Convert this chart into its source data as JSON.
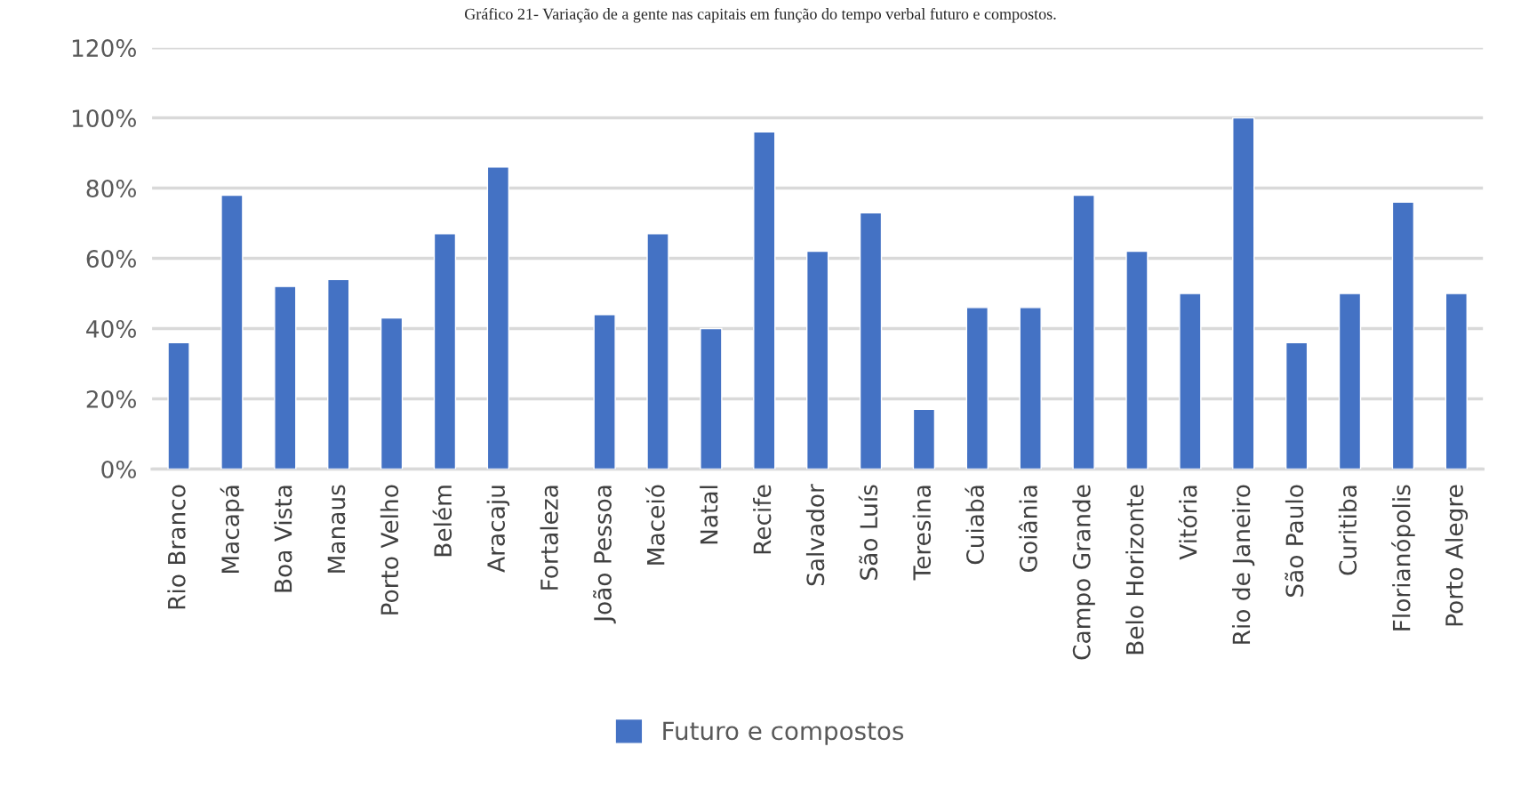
{
  "chart_data": {
    "type": "bar",
    "title": "Gráfico 21- Variação de a gente nas capitais em função do tempo verbal futuro e compostos.",
    "categories": [
      "Rio Branco",
      "Macapá",
      "Boa Vista",
      "Manaus",
      "Porto Velho",
      "Belém",
      "Aracaju",
      "Fortaleza",
      "João Pessoa",
      "Maceió",
      "Natal",
      "Recife",
      "Salvador",
      "São Luís",
      "Teresina",
      "Cuiabá",
      "Goiânia",
      "Campo Grande",
      "Belo Horizonte",
      "Vitória",
      "Rio de Janeiro",
      "São Paulo",
      "Curitiba",
      "Florianópolis",
      "Porto Alegre"
    ],
    "series": [
      {
        "name": "Futuro e compostos",
        "color": "#4472c4",
        "values": [
          36,
          78,
          52,
          54,
          43,
          67,
          86,
          null,
          44,
          67,
          40,
          96,
          62,
          73,
          17,
          46,
          46,
          78,
          62,
          50,
          100,
          36,
          50,
          76,
          50
        ]
      }
    ],
    "ylim": [
      0,
      120
    ],
    "yticks": [
      {
        "value": 0,
        "label": "0%"
      },
      {
        "value": 20,
        "label": "20%"
      },
      {
        "value": 40,
        "label": "40%"
      },
      {
        "value": 60,
        "label": "60%"
      },
      {
        "value": 80,
        "label": "80%"
      },
      {
        "value": 100,
        "label": "100%"
      },
      {
        "value": 120,
        "label": "120%"
      }
    ],
    "grid": "y",
    "legend": "bottom"
  }
}
